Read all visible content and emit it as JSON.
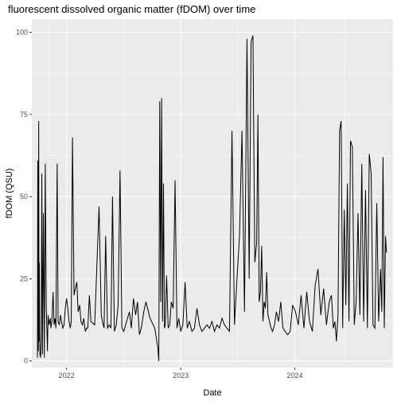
{
  "chart_data": {
    "type": "line",
    "title": "fluorescent dissolved organic matter (fDOM) over time",
    "xlabel": "Date",
    "ylabel": "fDOM (QSU)",
    "x_ticks": [
      "2022",
      "2023",
      "2024"
    ],
    "x_tick_dates": [
      "2022-01-01",
      "2023-01-01",
      "2024-01-01"
    ],
    "y_ticks": [
      0,
      25,
      50,
      75,
      100
    ],
    "xlim": [
      "2021-09-12",
      "2024-11-10"
    ],
    "ylim": [
      -2,
      104
    ],
    "grid": true,
    "legend": "none",
    "background": "#ebebeb",
    "grid_color": "#ffffff",
    "line_color": "#000000",
    "series": [
      {
        "x": [
          "2021-09-30",
          "2021-10-01",
          "2021-10-03",
          "2021-10-04",
          "2021-10-05",
          "2021-10-06",
          "2021-10-07",
          "2021-10-08",
          "2021-10-10",
          "2021-10-12",
          "2021-10-14",
          "2021-10-16",
          "2021-10-19",
          "2021-10-22",
          "2021-10-25",
          "2021-10-28",
          "2021-11-01",
          "2021-11-03",
          "2021-11-06",
          "2021-11-10",
          "2021-11-12",
          "2021-11-15",
          "2021-11-19",
          "2021-11-22",
          "2021-11-25",
          "2021-11-28",
          "2021-12-02",
          "2021-12-05",
          "2021-12-09",
          "2021-12-13",
          "2021-12-16",
          "2021-12-20",
          "2021-12-24",
          "2021-12-28",
          "2022-01-01",
          "2022-01-05",
          "2022-01-09",
          "2022-01-13",
          "2022-01-16",
          "2022-01-20",
          "2022-01-25",
          "2022-01-29",
          "2022-02-03",
          "2022-02-07",
          "2022-02-12",
          "2022-02-16",
          "2022-02-21",
          "2022-02-25",
          "2022-03-02",
          "2022-03-06",
          "2022-03-10",
          "2022-03-15",
          "2022-03-20",
          "2022-04-01",
          "2022-04-15",
          "2022-04-22",
          "2022-04-26",
          "2022-05-01",
          "2022-05-06",
          "2022-05-12",
          "2022-05-18",
          "2022-05-23",
          "2022-05-28",
          "2022-06-03",
          "2022-06-09",
          "2022-06-15",
          "2022-06-21",
          "2022-06-27",
          "2022-07-03",
          "2022-07-09",
          "2022-07-15",
          "2022-07-21",
          "2022-07-27",
          "2022-08-03",
          "2022-08-10",
          "2022-08-16",
          "2022-08-22",
          "2022-08-28",
          "2022-09-05",
          "2022-09-12",
          "2022-09-25",
          "2022-10-10",
          "2022-10-20",
          "2022-10-23",
          "2022-10-26",
          "2022-10-29",
          "2022-11-01",
          "2022-11-04",
          "2022-11-07",
          "2022-11-10",
          "2022-11-13",
          "2022-11-17",
          "2022-11-22",
          "2022-11-27",
          "2022-12-02",
          "2022-12-08",
          "2022-12-14",
          "2022-12-20",
          "2022-12-26",
          "2023-01-01",
          "2023-01-08",
          "2023-01-15",
          "2023-01-22",
          "2023-01-29",
          "2023-02-06",
          "2023-02-14",
          "2023-02-22",
          "2023-03-02",
          "2023-03-10",
          "2023-03-18",
          "2023-03-26",
          "2023-04-03",
          "2023-04-11",
          "2023-04-19",
          "2023-04-27",
          "2023-05-05",
          "2023-05-13",
          "2023-05-21",
          "2023-05-29",
          "2023-06-06",
          "2023-06-14",
          "2023-06-22",
          "2023-06-30",
          "2023-07-08",
          "2023-07-16",
          "2023-07-24",
          "2023-08-01",
          "2023-08-08",
          "2023-08-14",
          "2023-08-20",
          "2023-08-26",
          "2023-09-01",
          "2023-09-05",
          "2023-09-09",
          "2023-09-13",
          "2023-09-17",
          "2023-09-21",
          "2023-09-25",
          "2023-09-29",
          "2023-10-03",
          "2023-10-07",
          "2023-10-12",
          "2023-10-17",
          "2023-10-22",
          "2023-10-28",
          "2023-11-03",
          "2023-11-10",
          "2023-11-17",
          "2023-11-24",
          "2023-12-01",
          "2023-12-09",
          "2023-12-17",
          "2023-12-25",
          "2024-01-03",
          "2024-01-12",
          "2024-01-21",
          "2024-01-30",
          "2024-02-08",
          "2024-02-17",
          "2024-02-26",
          "2024-03-06",
          "2024-03-15",
          "2024-03-24",
          "2024-04-02",
          "2024-04-11",
          "2024-04-20",
          "2024-04-27",
          "2024-05-03",
          "2024-05-08",
          "2024-05-13",
          "2024-05-18",
          "2024-05-23",
          "2024-05-28",
          "2024-06-02",
          "2024-06-07",
          "2024-06-12",
          "2024-06-17",
          "2024-06-22",
          "2024-06-27",
          "2024-07-03",
          "2024-07-09",
          "2024-07-15",
          "2024-07-21",
          "2024-07-27",
          "2024-08-02",
          "2024-08-08",
          "2024-08-14",
          "2024-08-20",
          "2024-08-26",
          "2024-09-01",
          "2024-09-07",
          "2024-09-13",
          "2024-09-19",
          "2024-09-25",
          "2024-10-01",
          "2024-10-05",
          "2024-10-09",
          "2024-10-13",
          "2024-10-17",
          "2024-10-20"
        ],
        "y": [
          1,
          61,
          3,
          73,
          6,
          30,
          8,
          2,
          1,
          6,
          57,
          2,
          45,
          1,
          60,
          17,
          3,
          14,
          11,
          13,
          10,
          12,
          21,
          11,
          13,
          10,
          60,
          12,
          11,
          14,
          12,
          10,
          11,
          16,
          19,
          16,
          12,
          10,
          12,
          68,
          20,
          22,
          24,
          15,
          17,
          12,
          11,
          13,
          9,
          10,
          10,
          20,
          12,
          11,
          47,
          14,
          12,
          10,
          38,
          10,
          11,
          10,
          50,
          9,
          11,
          17,
          58,
          10,
          9,
          11,
          13,
          15,
          10,
          19,
          14,
          18,
          8,
          10,
          15,
          18,
          13,
          10,
          4,
          0,
          79,
          18,
          80,
          12,
          54,
          10,
          11,
          26,
          10,
          11,
          18,
          16,
          55,
          10,
          13,
          9,
          11,
          24,
          10,
          12,
          9,
          10,
          16,
          11,
          9,
          10,
          11,
          10,
          12,
          9,
          11,
          10,
          13,
          11,
          10,
          9,
          70,
          11,
          25,
          38,
          70,
          15,
          98,
          25,
          97,
          99,
          30,
          36,
          75,
          18,
          21,
          35,
          12,
          18,
          16,
          27,
          14,
          12,
          10,
          9,
          11,
          15,
          12,
          18,
          10,
          9,
          8,
          9,
          17,
          15,
          11,
          20,
          10,
          21,
          12,
          9,
          23,
          28,
          14,
          22,
          11,
          18,
          20,
          10,
          12,
          6,
          14,
          70,
          73,
          10,
          46,
          17,
          54,
          12,
          67,
          65,
          11,
          18,
          45,
          14,
          60,
          12,
          52,
          10,
          63,
          57,
          11,
          10,
          48,
          12,
          28,
          15,
          62,
          10,
          38,
          33
        ]
      }
    ]
  }
}
